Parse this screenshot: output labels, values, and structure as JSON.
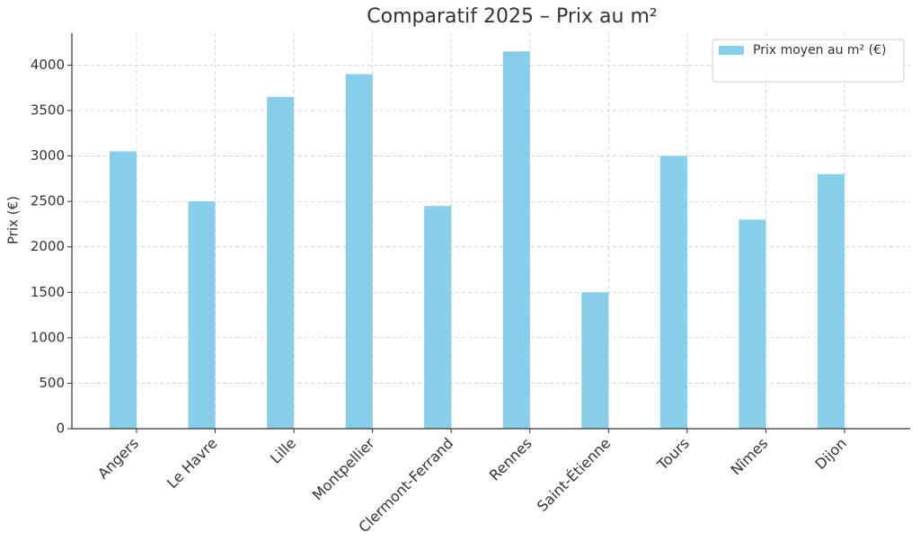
{
  "chart_data": {
    "type": "bar",
    "title": "Comparatif 2025 – Prix au m²",
    "y_label": "Prix (€)",
    "categories": [
      "Angers",
      "Le Havre",
      "Lille",
      "Montpellier",
      "Clermont-Ferrand",
      "Rennes",
      "Saint-Étienne",
      "Tours",
      "Nîmes",
      "Dijon"
    ],
    "series": [
      {
        "name": "Prix moyen au m² (€)",
        "color": "#87ceeb",
        "values": [
          3050,
          2500,
          3650,
          3900,
          2450,
          4150,
          1500,
          3000,
          2300,
          2800
        ]
      }
    ],
    "ylim": [
      0,
      4350
    ],
    "yticks": [
      0,
      500,
      1000,
      1500,
      2000,
      2500,
      3000,
      3500,
      4000
    ],
    "grid": true,
    "legend": "upper right"
  }
}
